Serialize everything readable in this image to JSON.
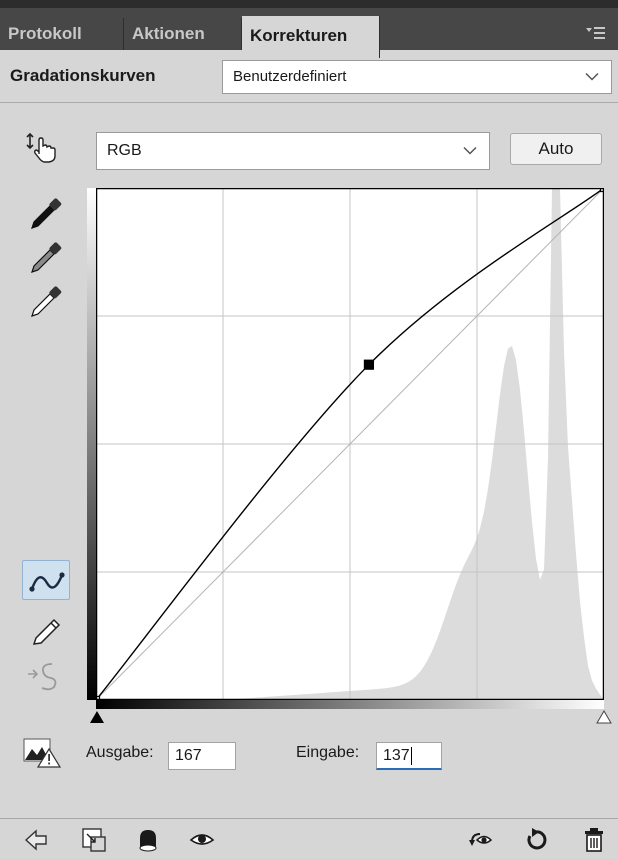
{
  "tabs": [
    {
      "label": "Protokoll",
      "active": false
    },
    {
      "label": "Aktionen",
      "active": false
    },
    {
      "label": "Korrekturen",
      "active": true
    }
  ],
  "panel": {
    "title": "Gradationskurven",
    "preset_value": "Benutzerdefiniert",
    "channel_value": "RGB",
    "auto_label": "Auto"
  },
  "tools": [
    "on-image-adjust-icon",
    "black-point-eyedropper-icon",
    "gray-point-eyedropper-icon",
    "white-point-eyedropper-icon",
    "curve-points-icon",
    "pencil-icon",
    "smooth-curve-icon"
  ],
  "curve": {
    "points": [
      [
        0,
        0
      ],
      [
        137,
        167
      ],
      [
        255,
        255
      ]
    ],
    "histogram_color": "#dcdcdc",
    "curve_color": "#000000",
    "grid_color": "#c4c4c4"
  },
  "footer": {
    "output_label": "Ausgabe:",
    "output_value": "167",
    "input_label": "Eingabe:",
    "input_value": "137"
  },
  "colors": {
    "tabbar": "#474747",
    "panel": "#d6d6d6",
    "focus": "#2b6cb8"
  }
}
